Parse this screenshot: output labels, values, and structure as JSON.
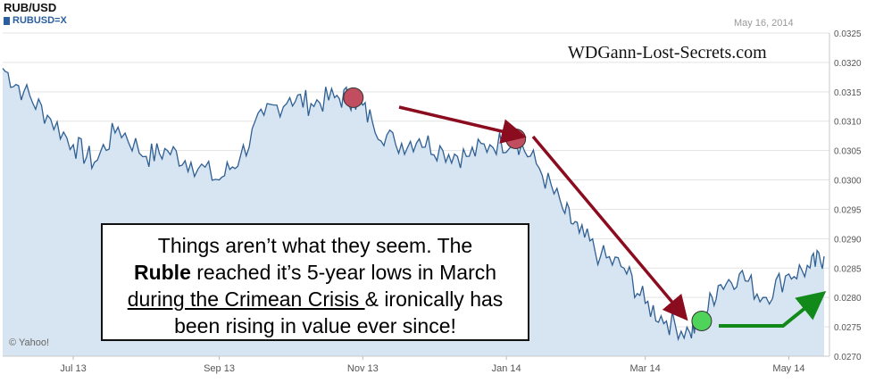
{
  "title": "RUB/USD",
  "legend": "RUBUSD=X",
  "date": "May 16, 2014",
  "watermark": "WDGann-Lost-Secrets.com",
  "credit": "© Yahoo!",
  "colors": {
    "line": "#2f5f93",
    "fill": "#d6e5f1",
    "grid": "#e3e3e3",
    "arrow_down": "#8b0b1f",
    "arrow_up": "#128a1a",
    "marker_red": "#c14e5e",
    "marker_green": "#4fd35a"
  },
  "annotation": {
    "l1": "Things aren’t what they seem.  The",
    "l2_bold": "Ruble",
    "l2": " reached it’s 5-year lows in March",
    "l3_ul": "during the Crimean Crisis ",
    "l3": "& ironically has",
    "l4": "been rising in value ever since!"
  },
  "chart_data": {
    "type": "area",
    "title": "RUB/USD",
    "series": [
      {
        "name": "RUBUSD=X",
        "x": [
          "2014-05-16",
          "2013-06-01",
          "2013-06-10",
          "2013-06-20",
          "2013-07-01",
          "2013-07-10",
          "2013-07-20",
          "2013-08-01",
          "2013-08-10",
          "2013-08-20",
          "2013-09-01",
          "2013-09-10",
          "2013-09-20",
          "2013-10-01",
          "2013-10-10",
          "2013-10-20",
          "2013-10-28",
          "2013-11-05",
          "2013-11-15",
          "2013-11-25",
          "2013-12-05",
          "2013-12-15",
          "2013-12-25",
          "2014-01-05",
          "2014-01-15",
          "2014-01-25",
          "2014-02-01",
          "2014-02-10",
          "2014-02-20",
          "2014-03-01",
          "2014-03-10",
          "2014-03-20",
          "2014-03-25",
          "2014-04-01",
          "2014-04-10",
          "2014-04-20",
          "2014-05-01",
          "2014-05-10",
          "2014-05-16"
        ],
        "x_note_removed": true,
        "values": [
          0.0287,
          0.0319,
          0.0315,
          0.0311,
          0.0306,
          0.0303,
          0.0309,
          0.0304,
          0.0305,
          0.0303,
          0.03,
          0.0304,
          0.0311,
          0.0314,
          0.0313,
          0.0314,
          0.0314,
          0.031,
          0.0306,
          0.0307,
          0.0305,
          0.0304,
          0.0306,
          0.0307,
          0.0302,
          0.0295,
          0.0291,
          0.0287,
          0.0285,
          0.0279,
          0.0276,
          0.0274,
          0.0276,
          0.0282,
          0.0284,
          0.028,
          0.0284,
          0.0285,
          0.0287
        ]
      }
    ],
    "x_tick_labels": [
      "Jul 13",
      "Sep 13",
      "Nov 13",
      "Jan 14",
      "Mar 14",
      "May 14"
    ],
    "y_ticks": [
      "0.0270",
      "0.0275",
      "0.0280",
      "0.0285",
      "0.0290",
      "0.0295",
      "0.0300",
      "0.0305",
      "0.0310",
      "0.0315",
      "0.0320",
      "0.0325"
    ],
    "ylim": [
      0.027,
      0.0325
    ],
    "grid": true,
    "legend_position": "top-left"
  }
}
